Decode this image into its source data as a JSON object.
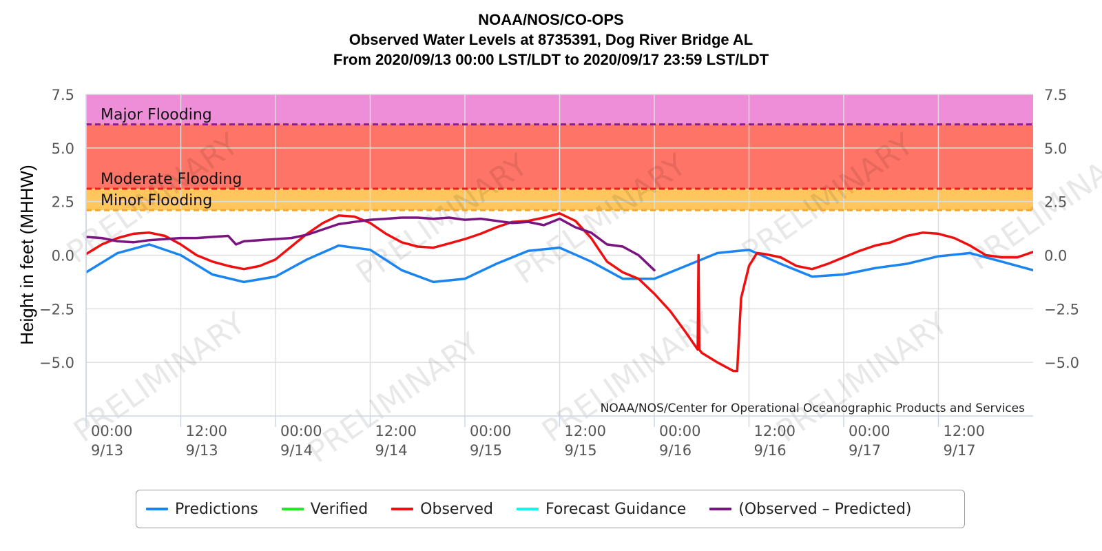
{
  "title": {
    "line1": "NOAA/NOS/CO-OPS",
    "line2": "Observed Water Levels at 8735391, Dog River Bridge AL",
    "line3": "From 2020/09/13 00:00 LST/LDT to 2020/09/17 23:59 LST/LDT"
  },
  "credit": "NOAA/NOS/Center for Operational Oceanographic Products and Services",
  "watermark": "PRELIMINARY",
  "chart_data": {
    "type": "line",
    "ylabel": "Height in feet (MHHW)",
    "ylim": [
      -7.5,
      7.5
    ],
    "y_ticks": [
      "7.5",
      "5.0",
      "2.5",
      "0.0",
      "−2.5",
      "−5.0"
    ],
    "y_tick_values": [
      7.5,
      5.0,
      2.5,
      0.0,
      -2.5,
      -5.0
    ],
    "x_range_hours": [
      0,
      120
    ],
    "x_ticks": [
      {
        "hour": 0,
        "time": "00:00",
        "date": "9/13"
      },
      {
        "hour": 12,
        "time": "12:00",
        "date": "9/13"
      },
      {
        "hour": 24,
        "time": "00:00",
        "date": "9/14"
      },
      {
        "hour": 36,
        "time": "12:00",
        "date": "9/14"
      },
      {
        "hour": 48,
        "time": "00:00",
        "date": "9/15"
      },
      {
        "hour": 60,
        "time": "12:00",
        "date": "9/15"
      },
      {
        "hour": 72,
        "time": "00:00",
        "date": "9/16"
      },
      {
        "hour": 84,
        "time": "12:00",
        "date": "9/16"
      },
      {
        "hour": 96,
        "time": "00:00",
        "date": "9/17"
      },
      {
        "hour": 108,
        "time": "12:00",
        "date": "9/17"
      }
    ],
    "grid": true,
    "legend_position": "bottom",
    "flood_bands": [
      {
        "label": "Major Flooding",
        "threshold": 6.1,
        "upper": 7.5,
        "color": "#ee8ed8",
        "line_color": "#8b1a9c"
      },
      {
        "label": "Moderate Flooding",
        "threshold": 3.1,
        "upper": 6.1,
        "color": "#fe7466",
        "line_color": "#ee1c1c"
      },
      {
        "label": "Minor Flooding",
        "threshold": 2.1,
        "upper": 3.1,
        "color": "#fec65d",
        "line_color": "#f0a830"
      }
    ],
    "series": [
      {
        "name": "Predictions",
        "color": "#1a85f0",
        "x": [
          0,
          4,
          8,
          12,
          16,
          20,
          24,
          28,
          32,
          36,
          40,
          44,
          48,
          52,
          56,
          60,
          64,
          68,
          72,
          76,
          80,
          84,
          88,
          92,
          96,
          100,
          104,
          108,
          112,
          116,
          120
        ],
        "y": [
          -0.8,
          0.1,
          0.5,
          0.0,
          -0.9,
          -1.25,
          -1.0,
          -0.2,
          0.45,
          0.25,
          -0.7,
          -1.25,
          -1.1,
          -0.4,
          0.2,
          0.35,
          -0.3,
          -1.1,
          -1.1,
          -0.5,
          0.1,
          0.25,
          -0.4,
          -1.0,
          -0.9,
          -0.6,
          -0.4,
          -0.05,
          0.1,
          -0.3,
          -0.7
        ]
      },
      {
        "name": "Verified",
        "color": "#22e822",
        "x": [],
        "y": []
      },
      {
        "name": "Observed",
        "color": "#ee1010",
        "x": [
          0,
          2,
          4,
          6,
          8,
          10,
          12,
          14,
          16,
          18,
          20,
          22,
          24,
          26,
          28,
          30,
          32,
          34,
          36,
          38,
          40,
          42,
          44,
          46,
          48,
          50,
          52,
          54,
          56,
          58,
          60,
          62,
          64,
          66,
          68,
          70,
          72,
          74,
          76,
          77.5,
          77.6,
          77.7,
          78,
          80,
          82,
          82.5,
          83,
          84,
          85,
          86,
          88,
          90,
          92,
          94,
          96,
          98,
          100,
          102,
          104,
          106,
          108,
          110,
          112,
          114,
          116,
          118,
          120
        ],
        "y": [
          0.05,
          0.5,
          0.8,
          1.0,
          1.05,
          0.9,
          0.5,
          0.0,
          -0.3,
          -0.5,
          -0.65,
          -0.5,
          -0.2,
          0.4,
          1.0,
          1.5,
          1.85,
          1.8,
          1.5,
          1.0,
          0.6,
          0.4,
          0.35,
          0.55,
          0.75,
          1.0,
          1.3,
          1.55,
          1.6,
          1.75,
          1.95,
          1.6,
          0.8,
          -0.3,
          -0.8,
          -1.1,
          -1.8,
          -2.6,
          -3.6,
          -4.4,
          0.0,
          -4.4,
          -4.55,
          -5.0,
          -5.4,
          -5.4,
          -2.0,
          -0.5,
          0.1,
          0.05,
          -0.1,
          -0.5,
          -0.65,
          -0.4,
          -0.1,
          0.2,
          0.45,
          0.6,
          0.9,
          1.05,
          1.0,
          0.8,
          0.45,
          0.0,
          -0.1,
          -0.1,
          0.15
        ]
      },
      {
        "name": "Forecast Guidance",
        "color": "#1af0f0",
        "x": [],
        "y": []
      },
      {
        "name": "(Observed – Predicted)",
        "color": "#7a1480",
        "x": [
          0,
          2,
          4,
          6,
          8,
          10,
          12,
          14,
          16,
          18,
          19,
          20,
          22,
          24,
          26,
          28,
          30,
          32,
          34,
          36,
          38,
          40,
          42,
          44,
          46,
          48,
          50,
          52,
          54,
          56,
          58,
          60,
          62,
          64,
          66,
          68,
          70,
          72
        ],
        "y": [
          0.85,
          0.8,
          0.65,
          0.6,
          0.7,
          0.75,
          0.8,
          0.8,
          0.85,
          0.9,
          0.5,
          0.65,
          0.7,
          0.75,
          0.8,
          0.95,
          1.2,
          1.45,
          1.55,
          1.65,
          1.7,
          1.75,
          1.75,
          1.7,
          1.75,
          1.65,
          1.7,
          1.6,
          1.5,
          1.55,
          1.4,
          1.7,
          1.3,
          1.05,
          0.5,
          0.4,
          0.0,
          -0.7
        ]
      }
    ]
  },
  "legend": [
    {
      "label": "Predictions",
      "color": "#1a85f0"
    },
    {
      "label": "Verified",
      "color": "#22e822"
    },
    {
      "label": "Observed",
      "color": "#ee1010"
    },
    {
      "label": "Forecast Guidance",
      "color": "#1af0f0"
    },
    {
      "label": "(Observed – Predicted)",
      "color": "#7a1480"
    }
  ]
}
